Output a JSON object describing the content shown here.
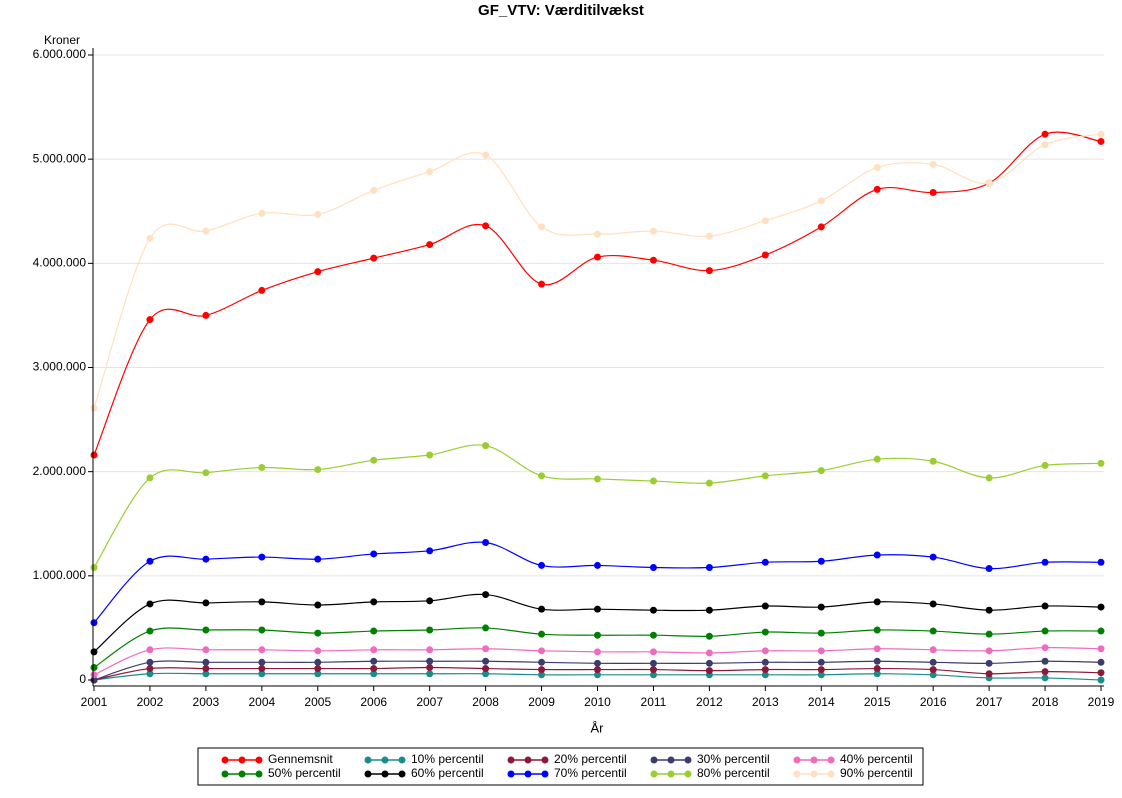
{
  "chart_data": {
    "type": "line",
    "title": "GF_VTV: Værditilvækst",
    "y_label": "Kroner",
    "x_label": "År",
    "x": [
      2001,
      2002,
      2003,
      2004,
      2005,
      2006,
      2007,
      2008,
      2009,
      2010,
      2011,
      2012,
      2013,
      2014,
      2015,
      2016,
      2017,
      2018,
      2019
    ],
    "xlim": [
      2001,
      2019
    ],
    "xticks": [
      2001,
      2002,
      2003,
      2004,
      2005,
      2006,
      2007,
      2008,
      2009,
      2010,
      2011,
      2012,
      2013,
      2014,
      2015,
      2016,
      2017,
      2018,
      2019
    ],
    "ylim": [
      0,
      6000000
    ],
    "yticks": [
      0,
      {
        "value": 1000000,
        "label": "1.000.000"
      },
      {
        "value": 2000000,
        "label": "2.000.000"
      },
      {
        "value": 3000000,
        "label": "3.000.000"
      },
      {
        "value": 4000000,
        "label": "4.000.000"
      },
      {
        "value": 5000000,
        "label": "5.000.000"
      },
      {
        "value": 6000000,
        "label": "6.000.000"
      }
    ],
    "grid": true,
    "series": [
      {
        "name": "Gennemsnit",
        "color": "#ff0000",
        "values": [
          2160000,
          3460000,
          3500000,
          3740000,
          3920000,
          4050000,
          4180000,
          4360000,
          3800000,
          4060000,
          4030000,
          3930000,
          4080000,
          4350000,
          4710000,
          4680000,
          4770000,
          5240000,
          5170000
        ]
      },
      {
        "name": "10% percentil",
        "color": "#1a8c8c",
        "values": [
          0,
          60000,
          60000,
          60000,
          60000,
          60000,
          60000,
          60000,
          50000,
          50000,
          50000,
          50000,
          50000,
          50000,
          60000,
          50000,
          20000,
          20000,
          0
        ]
      },
      {
        "name": "20% percentil",
        "color": "#8b1a3a",
        "values": [
          0,
          110000,
          110000,
          110000,
          110000,
          110000,
          120000,
          110000,
          100000,
          100000,
          100000,
          90000,
          100000,
          100000,
          110000,
          100000,
          60000,
          80000,
          70000
        ]
      },
      {
        "name": "30% percentil",
        "color": "#3c3c6e",
        "values": [
          0,
          170000,
          170000,
          170000,
          170000,
          180000,
          180000,
          180000,
          170000,
          160000,
          160000,
          160000,
          170000,
          170000,
          180000,
          170000,
          160000,
          180000,
          170000
        ]
      },
      {
        "name": "40% percentil",
        "color": "#f06bbf",
        "values": [
          50000,
          290000,
          290000,
          290000,
          280000,
          290000,
          290000,
          300000,
          280000,
          270000,
          270000,
          260000,
          280000,
          280000,
          300000,
          290000,
          280000,
          310000,
          300000
        ]
      },
      {
        "name": "50% percentil",
        "color": "#008000",
        "values": [
          120000,
          470000,
          480000,
          480000,
          450000,
          470000,
          480000,
          500000,
          440000,
          430000,
          430000,
          420000,
          460000,
          450000,
          480000,
          470000,
          440000,
          470000,
          470000
        ]
      },
      {
        "name": "60% percentil",
        "color": "#000000",
        "values": [
          270000,
          730000,
          740000,
          750000,
          720000,
          750000,
          760000,
          820000,
          680000,
          680000,
          670000,
          670000,
          710000,
          700000,
          750000,
          730000,
          670000,
          710000,
          700000
        ]
      },
      {
        "name": "70% percentil",
        "color": "#0000ff",
        "values": [
          550000,
          1140000,
          1160000,
          1180000,
          1160000,
          1210000,
          1240000,
          1320000,
          1100000,
          1100000,
          1080000,
          1080000,
          1130000,
          1140000,
          1200000,
          1180000,
          1070000,
          1130000,
          1130000
        ]
      },
      {
        "name": "80% percentil",
        "color": "#9acd32",
        "values": [
          1080000,
          1940000,
          1990000,
          2040000,
          2020000,
          2110000,
          2160000,
          2250000,
          1960000,
          1930000,
          1910000,
          1890000,
          1960000,
          2010000,
          2120000,
          2100000,
          1940000,
          2060000,
          2080000
        ]
      },
      {
        "name": "90% percentil",
        "color": "#ffe0c0",
        "values": [
          2610000,
          4240000,
          4310000,
          4480000,
          4470000,
          4700000,
          4880000,
          5040000,
          4350000,
          4280000,
          4310000,
          4260000,
          4410000,
          4600000,
          4920000,
          4950000,
          4770000,
          5140000,
          5240000
        ]
      }
    ]
  }
}
